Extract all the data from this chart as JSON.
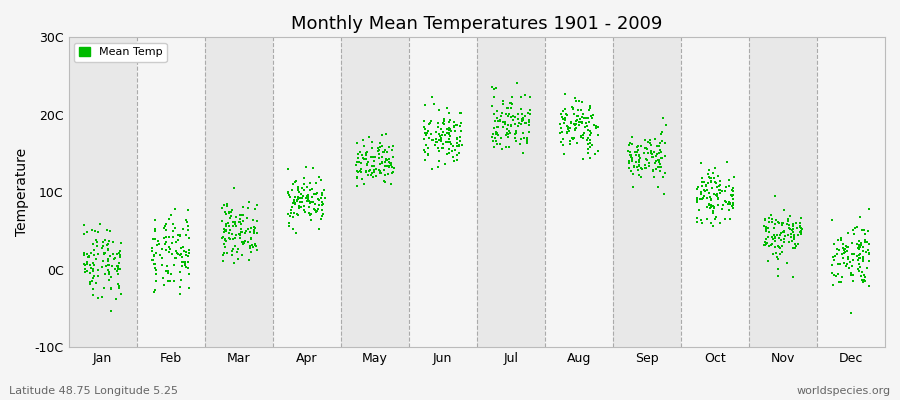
{
  "title": "Monthly Mean Temperatures 1901 - 2009",
  "ylabel": "Temperature",
  "subtitle_left": "Latitude 48.75 Longitude 5.25",
  "subtitle_right": "worldspecies.org",
  "yticks": [
    -10,
    0,
    10,
    20,
    30
  ],
  "ytick_labels": [
    "-10C",
    "0C",
    "10C",
    "20C",
    "30C"
  ],
  "months": [
    "Jan",
    "Feb",
    "Mar",
    "Apr",
    "May",
    "Jun",
    "Jul",
    "Aug",
    "Sep",
    "Oct",
    "Nov",
    "Dec"
  ],
  "mean_temps": [
    1.2,
    1.8,
    5.0,
    9.0,
    13.5,
    17.0,
    19.0,
    18.5,
    14.5,
    9.5,
    4.5,
    2.0
  ],
  "std_temps": [
    2.5,
    2.5,
    1.8,
    1.6,
    1.6,
    1.8,
    2.0,
    1.8,
    1.6,
    1.6,
    1.8,
    2.2
  ],
  "n_years": 109,
  "dot_color": "#00bb00",
  "dot_size": 4,
  "bg_color_light": "#f5f5f5",
  "bg_color_dark": "#e8e8e8",
  "fig_bg_color": "#f5f5f5",
  "dashed_line_color": "#aaaaaa",
  "ylim": [
    -10,
    30
  ],
  "xlim": [
    0,
    12
  ],
  "seed": 42,
  "x_jitter": 0.28
}
